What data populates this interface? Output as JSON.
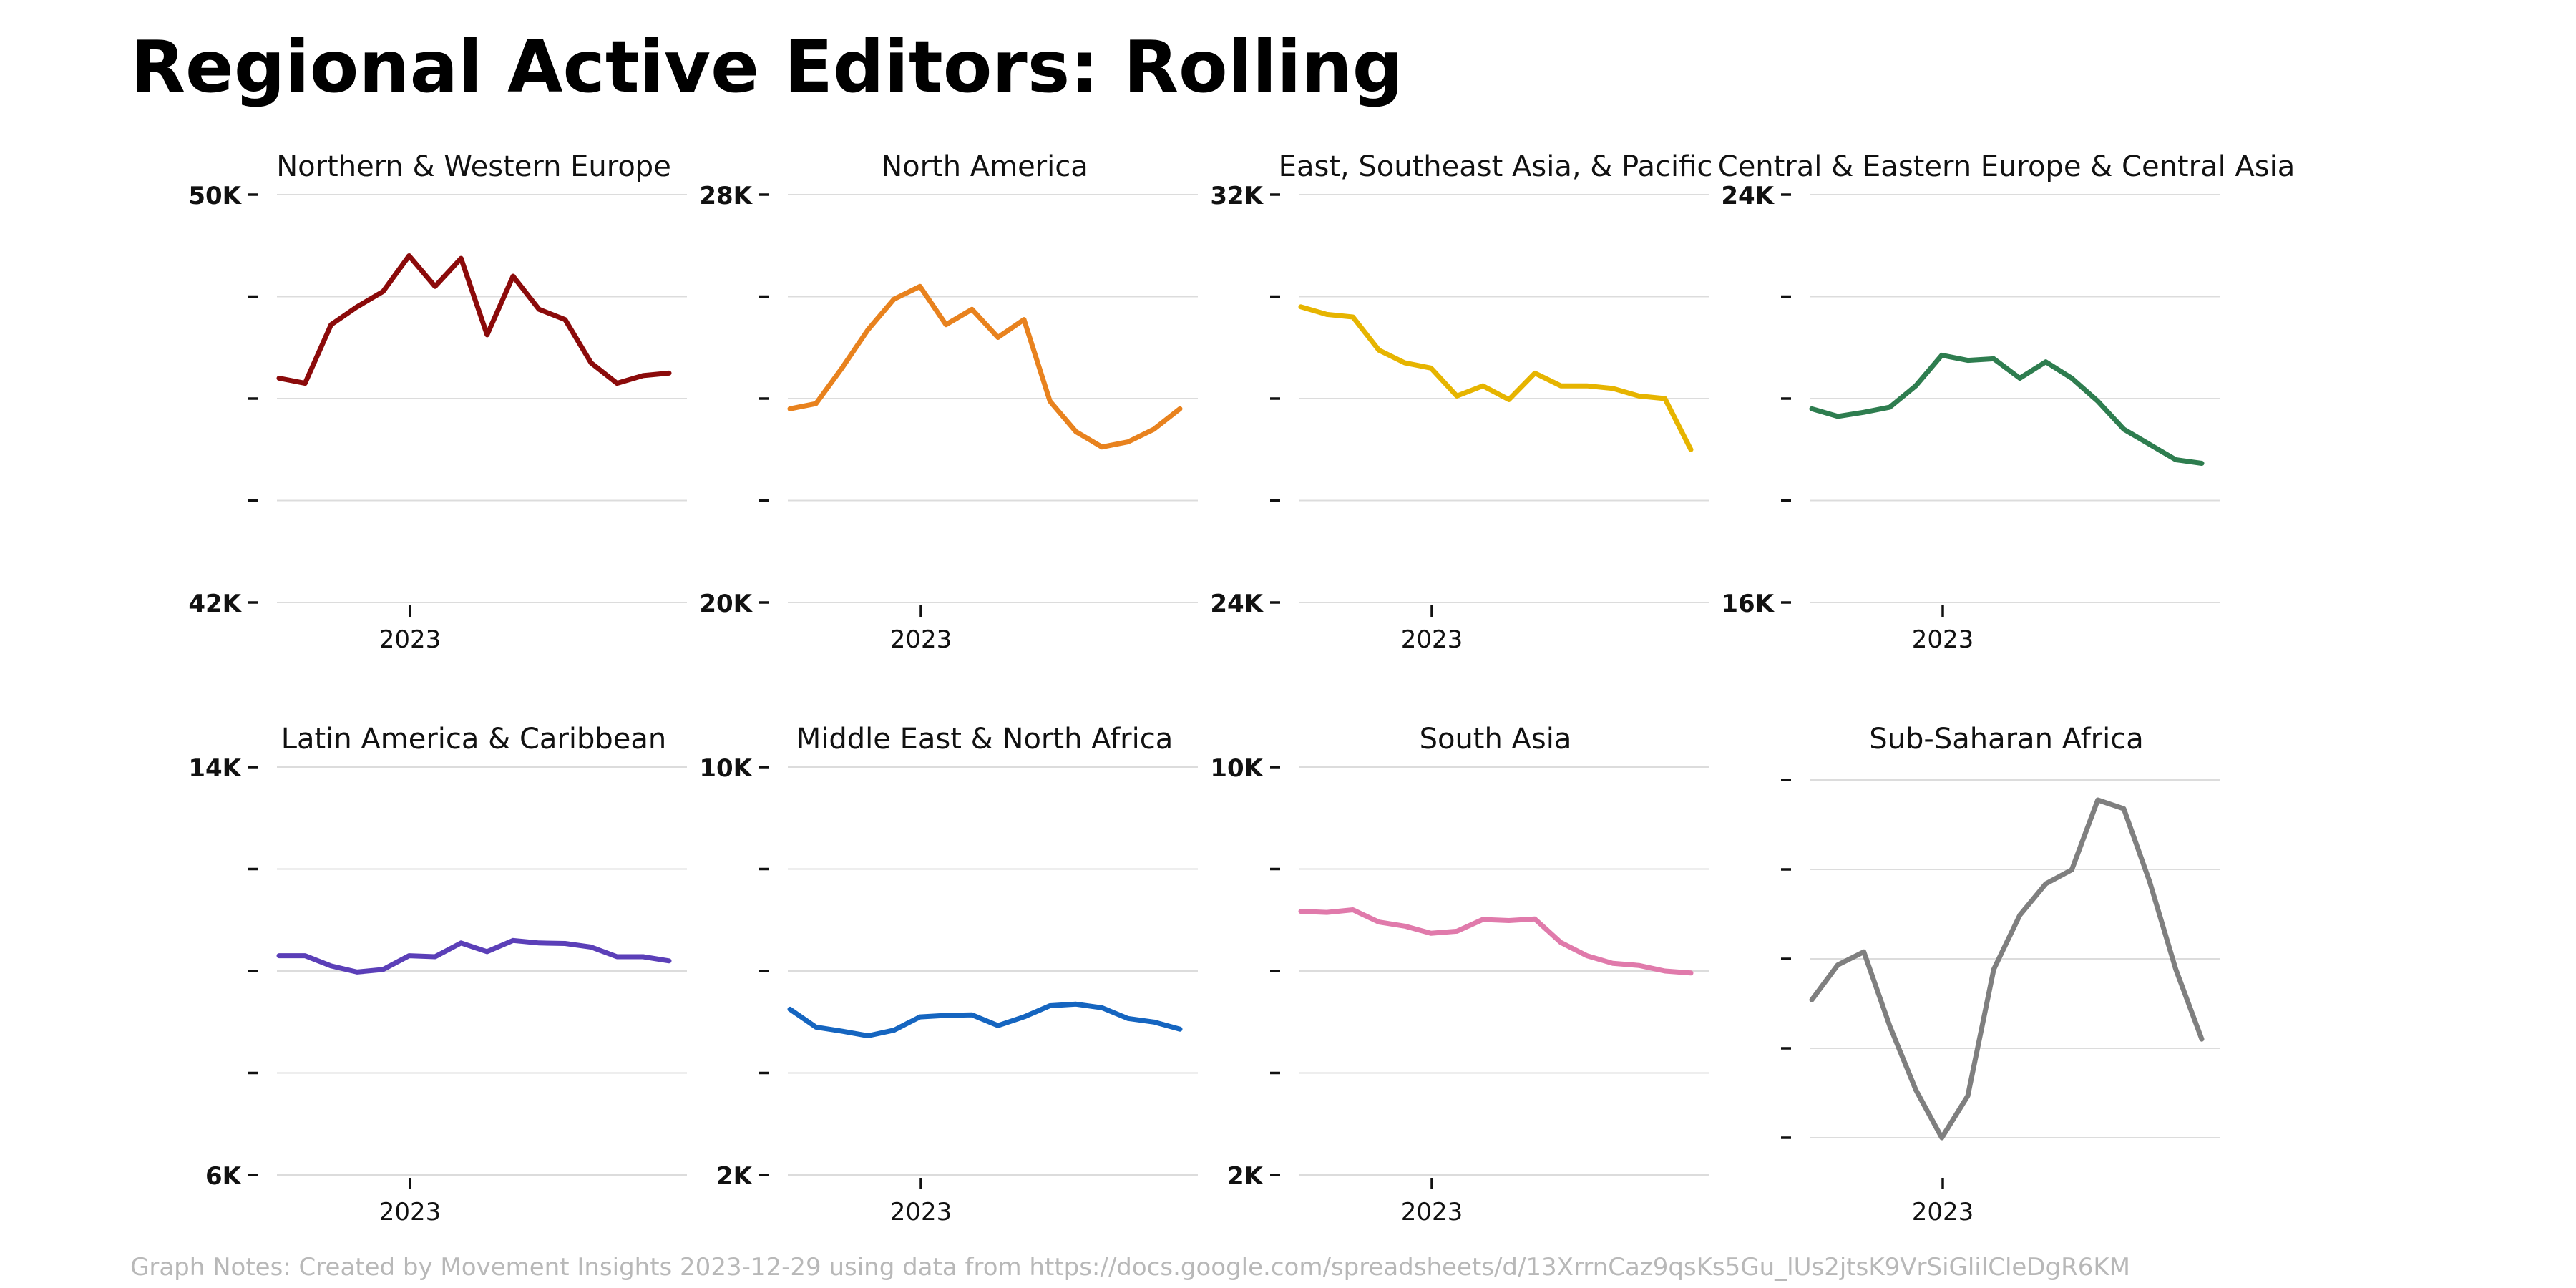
{
  "title": "Regional Active Editors: Rolling",
  "notes": "Graph Notes: Created by Movement Insights 2023-12-29 using data from https://docs.google.com/spreadsheets/d/13XrrnCaz9qsKs5Gu_lUs2jtsK9VrSiGlilCleDgR6KM",
  "chart_data": [
    {
      "type": "line",
      "title": "Northern & Western Europe",
      "color": "#8b0a0a",
      "ylim": [
        42000,
        50000
      ],
      "ytick_labels": [
        "50K",
        "",
        "",
        "",
        "42K"
      ],
      "xtick_labels": [
        "2023"
      ],
      "grid": true,
      "x": [
        "2022-07",
        "2022-08",
        "2022-09",
        "2022-10",
        "2022-11",
        "2022-12",
        "2023-01",
        "2023-02",
        "2023-03",
        "2023-04",
        "2023-05",
        "2023-06",
        "2023-07",
        "2023-08",
        "2023-09",
        "2023-10"
      ],
      "values": [
        46400,
        46300,
        47450,
        47800,
        48100,
        48800,
        48200,
        48750,
        47250,
        48400,
        47750,
        47550,
        46700,
        46300,
        46450,
        46500
      ]
    },
    {
      "type": "line",
      "title": "North America",
      "color": "#e8821e",
      "ylim": [
        20000,
        28000
      ],
      "ytick_labels": [
        "28K",
        "",
        "",
        "",
        "20K"
      ],
      "xtick_labels": [
        "2023"
      ],
      "grid": true,
      "x": [
        "2022-07",
        "2022-08",
        "2022-09",
        "2022-10",
        "2022-11",
        "2022-12",
        "2023-01",
        "2023-02",
        "2023-03",
        "2023-04",
        "2023-05",
        "2023-06",
        "2023-07",
        "2023-08",
        "2023-09",
        "2023-10"
      ],
      "values": [
        23800,
        23900,
        24600,
        25350,
        25950,
        26200,
        25450,
        25750,
        25200,
        25550,
        23950,
        23350,
        23050,
        23150,
        23400,
        23800
      ]
    },
    {
      "type": "line",
      "title": "East, Southeast Asia, & Pacific",
      "color": "#e6b400",
      "ylim": [
        24000,
        32000
      ],
      "ytick_labels": [
        "32K",
        "",
        "",
        "",
        "24K"
      ],
      "xtick_labels": [
        "2023"
      ],
      "grid": true,
      "x": [
        "2022-07",
        "2022-08",
        "2022-09",
        "2022-10",
        "2022-11",
        "2022-12",
        "2023-01",
        "2023-02",
        "2023-03",
        "2023-04",
        "2023-05",
        "2023-06",
        "2023-07",
        "2023-08",
        "2023-09",
        "2023-10"
      ],
      "values": [
        29800,
        29650,
        29600,
        28950,
        28700,
        28600,
        28050,
        28250,
        27980,
        28500,
        28250,
        28250,
        28200,
        28050,
        28000,
        27000
      ]
    },
    {
      "type": "line",
      "title": "Central & Eastern Europe & Central Asia",
      "color": "#2e7d4f",
      "ylim": [
        16000,
        24000
      ],
      "ytick_labels": [
        "24K",
        "",
        "",
        "",
        "16K"
      ],
      "xtick_labels": [
        "2023"
      ],
      "grid": true,
      "x": [
        "2022-07",
        "2022-08",
        "2022-09",
        "2022-10",
        "2022-11",
        "2022-12",
        "2023-01",
        "2023-02",
        "2023-03",
        "2023-04",
        "2023-05",
        "2023-06",
        "2023-07",
        "2023-08",
        "2023-09",
        "2023-10"
      ],
      "values": [
        19800,
        19650,
        19730,
        19830,
        20250,
        20850,
        20750,
        20780,
        20400,
        20720,
        20400,
        19950,
        19400,
        19100,
        18800,
        18730
      ]
    },
    {
      "type": "line",
      "title": "Latin America & Caribbean",
      "color": "#5b3fb8",
      "ylim": [
        6000,
        14000
      ],
      "ytick_labels": [
        "14K",
        "",
        "",
        "",
        "6K"
      ],
      "xtick_labels": [
        "2023"
      ],
      "grid": true,
      "x": [
        "2022-07",
        "2022-08",
        "2022-09",
        "2022-10",
        "2022-11",
        "2022-12",
        "2023-01",
        "2023-02",
        "2023-03",
        "2023-04",
        "2023-05",
        "2023-06",
        "2023-07",
        "2023-08",
        "2023-09",
        "2023-10"
      ],
      "values": [
        10300,
        10300,
        10100,
        9980,
        10030,
        10300,
        10280,
        10550,
        10380,
        10600,
        10550,
        10540,
        10470,
        10280,
        10280,
        10200
      ]
    },
    {
      "type": "line",
      "title": "Middle East & North Africa",
      "color": "#1565c0",
      "ylim": [
        2000,
        10000
      ],
      "ytick_labels": [
        "10K",
        "",
        "",
        "",
        "2K"
      ],
      "xtick_labels": [
        "2023"
      ],
      "grid": true,
      "x": [
        "2022-07",
        "2022-08",
        "2022-09",
        "2022-10",
        "2022-11",
        "2022-12",
        "2023-01",
        "2023-02",
        "2023-03",
        "2023-04",
        "2023-05",
        "2023-06",
        "2023-07",
        "2023-08",
        "2023-09",
        "2023-10"
      ],
      "values": [
        5250,
        4900,
        4820,
        4730,
        4840,
        5100,
        5130,
        5140,
        4930,
        5100,
        5320,
        5350,
        5280,
        5070,
        5000,
        4860
      ]
    },
    {
      "type": "line",
      "title": "South Asia",
      "color": "#e07aab",
      "ylim": [
        2000,
        10000
      ],
      "ytick_labels": [
        "10K",
        "",
        "",
        "",
        "2K"
      ],
      "xtick_labels": [
        "2023"
      ],
      "grid": true,
      "x": [
        "2022-07",
        "2022-08",
        "2022-09",
        "2022-10",
        "2022-11",
        "2022-12",
        "2023-01",
        "2023-02",
        "2023-03",
        "2023-04",
        "2023-05",
        "2023-06",
        "2023-07",
        "2023-08",
        "2023-09",
        "2023-10"
      ],
      "values": [
        7170,
        7150,
        7200,
        6960,
        6880,
        6740,
        6780,
        7010,
        6990,
        7020,
        6560,
        6300,
        6150,
        6110,
        6000,
        5960
      ]
    },
    {
      "type": "line",
      "title": "Sub-Saharan Africa",
      "color": "#7f7f7f",
      "ytick_labels": [
        "",
        "",
        "",
        "",
        ""
      ],
      "xtick_labels": [
        "2023"
      ],
      "grid": true,
      "x": [
        "2022-07",
        "2022-08",
        "2022-09",
        "2022-10",
        "2022-11",
        "2022-12",
        "2023-01",
        "2023-02",
        "2023-03",
        "2023-04",
        "2023-05",
        "2023-06",
        "2023-07",
        "2023-08",
        "2023-09",
        "2023-10"
      ],
      "values": [
        1.65,
        2.05,
        2.2,
        1.35,
        0.62,
        0.07,
        0.55,
        2.0,
        2.62,
        2.98,
        3.14,
        3.94,
        3.84,
        3.0,
        2.0,
        1.2
      ]
    }
  ]
}
